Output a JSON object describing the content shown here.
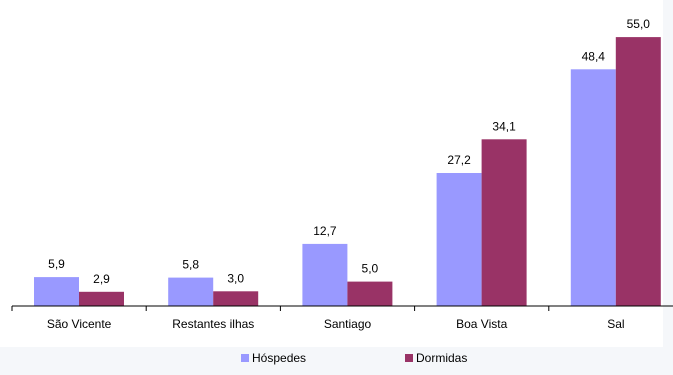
{
  "chart_data": {
    "type": "bar",
    "categories": [
      "São Vicente",
      "Restantes ilhas",
      "Santiago",
      "Boa Vista",
      "Sal"
    ],
    "series": [
      {
        "name": "Hóspedes",
        "values": [
          5.9,
          5.8,
          12.7,
          27.2,
          48.4
        ],
        "value_labels": [
          "5,9",
          "5,8",
          "12,7",
          "27,2",
          "48,4"
        ]
      },
      {
        "name": "Dormidas",
        "values": [
          2.9,
          3.0,
          5.0,
          34.1,
          55.0
        ],
        "value_labels": [
          "2,9",
          "3,0",
          "5,0",
          "34,1",
          "55,0"
        ]
      }
    ],
    "colors": {
      "Hóspedes": "#9999ff",
      "Dormidas": "#993366",
      "plot_background": "#ffffff",
      "page_background": "#f5f7fa",
      "axis": "#000000"
    },
    "ylim": [
      0,
      55
    ],
    "grid": false,
    "legend": "bottom-center",
    "title": "",
    "xlabel": "",
    "ylabel": ""
  }
}
